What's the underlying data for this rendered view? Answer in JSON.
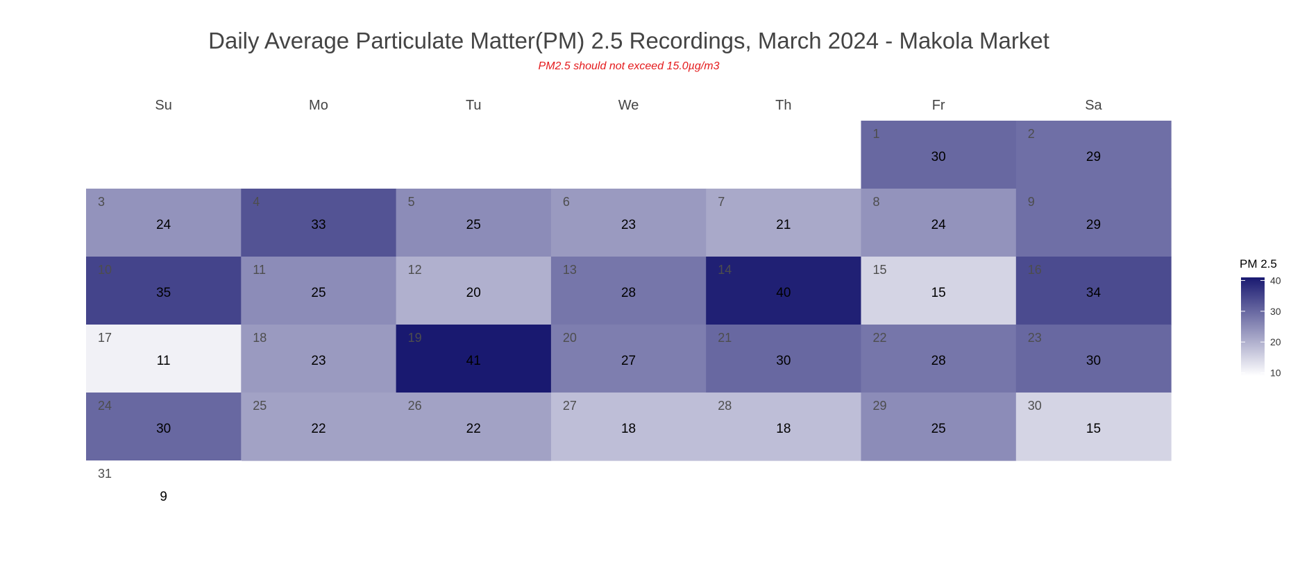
{
  "chart_data": {
    "type": "heatmap",
    "title": "Daily Average Particulate Matter(PM) 2.5 Recordings, March 2024 - Makola Market",
    "subtitle": "PM2.5 should not exceed 15.0µg/m3",
    "weekdays": [
      "Su",
      "Mo",
      "Tu",
      "We",
      "Th",
      "Fr",
      "Sa"
    ],
    "first_weekday_index": 5,
    "days": [
      1,
      2,
      3,
      4,
      5,
      6,
      7,
      8,
      9,
      10,
      11,
      12,
      13,
      14,
      15,
      16,
      17,
      18,
      19,
      20,
      21,
      22,
      23,
      24,
      25,
      26,
      27,
      28,
      29,
      30,
      31
    ],
    "values": [
      30,
      29,
      24,
      33,
      25,
      23,
      21,
      24,
      29,
      35,
      25,
      20,
      28,
      40,
      15,
      34,
      11,
      23,
      41,
      27,
      30,
      28,
      30,
      30,
      22,
      22,
      18,
      18,
      25,
      15,
      9
    ],
    "legend": {
      "title": "PM 2.5",
      "ticks": [
        10,
        20,
        30,
        40
      ],
      "range": [
        9,
        41
      ],
      "color_low": "#ffffff",
      "color_high": "#191970",
      "placement": "right"
    }
  }
}
